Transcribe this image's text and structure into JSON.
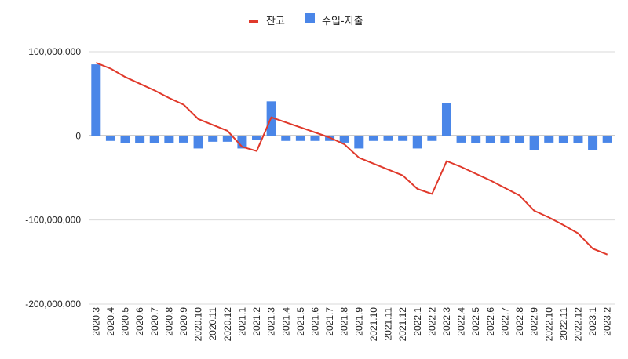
{
  "chart_data": {
    "type": "bar",
    "title": "",
    "xlabel": "",
    "ylabel": "",
    "ylim": [
      -200000000,
      100000000
    ],
    "yticks": [
      100000000,
      0,
      -100000000,
      -200000000
    ],
    "ytick_labels": [
      "100,000,000",
      "0",
      "-100,000,000",
      "-200,000,000"
    ],
    "grid": true,
    "legend_position": "top",
    "categories": [
      "2020.3",
      "2020.4",
      "2020.5",
      "2020.6",
      "2020.7",
      "2020.8",
      "2020.9",
      "2020.10",
      "2020.11",
      "2020.12",
      "2021.1",
      "2021.2",
      "2021.3",
      "2021.4",
      "2021.5",
      "2021.6",
      "2021.7",
      "2021.8",
      "2021.9",
      "2021.10",
      "2021.11",
      "2021.12",
      "2022.1",
      "2022.2",
      "2022.3",
      "2022.4",
      "2022.5",
      "2022.6",
      "2022.7",
      "2022.8",
      "2022.9",
      "2022.10",
      "2022.11",
      "2022.12",
      "2023.1",
      "2023.2"
    ],
    "series": [
      {
        "name": "잔고",
        "type": "line",
        "color": "#e0392b",
        "values": [
          87000000,
          80000000,
          70000000,
          62000000,
          54000000,
          45000000,
          37000000,
          20000000,
          13000000,
          6000000,
          -13000000,
          -18000000,
          22000000,
          16000000,
          10000000,
          4000000,
          -2000000,
          -10000000,
          -26000000,
          -33000000,
          -40000000,
          -47000000,
          -63000000,
          -69000000,
          -30000000,
          -37000000,
          -45000000,
          -53000000,
          -62000000,
          -71000000,
          -89000000,
          -97000000,
          -106000000,
          -116000000,
          -134000000,
          -141000000
        ]
      },
      {
        "name": "수입-지출",
        "type": "bar",
        "color": "#4a86e8",
        "values": [
          85000000,
          -6000000,
          -9000000,
          -9000000,
          -9000000,
          -9000000,
          -8000000,
          -15000000,
          -7000000,
          -7000000,
          -15000000,
          -5000000,
          41000000,
          -6000000,
          -6000000,
          -6000000,
          -6000000,
          -8000000,
          -15000000,
          -6000000,
          -6000000,
          -6000000,
          -15000000,
          -6000000,
          39000000,
          -8000000,
          -9000000,
          -9000000,
          -9000000,
          -9000000,
          -17000000,
          -8000000,
          -9000000,
          -9000000,
          -17000000,
          -8000000
        ]
      }
    ]
  }
}
